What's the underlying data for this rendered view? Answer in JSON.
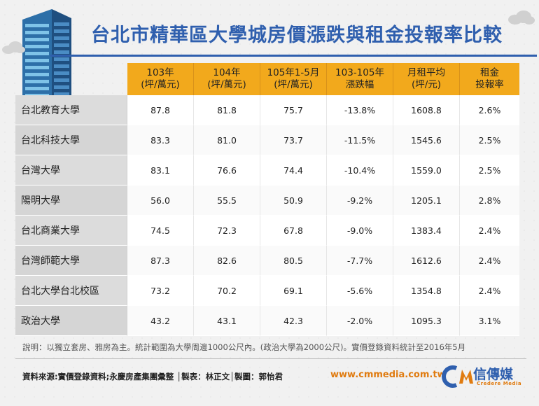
{
  "title": "台北市精華區大學城房價漲跌與租金投報率比較",
  "chart_data": {
    "type": "table",
    "columns": [
      {
        "line1": "103年",
        "line2": "(坪/萬元)"
      },
      {
        "line1": "104年",
        "line2": "(坪/萬元)"
      },
      {
        "line1": "105年1-5月",
        "line2": "(坪/萬元)"
      },
      {
        "line1": "103-105年",
        "line2": "漲跌幅"
      },
      {
        "line1": "月租平均",
        "line2": "(坪/元)"
      },
      {
        "line1": "租金",
        "line2": "投報率"
      }
    ],
    "rows": [
      {
        "name": "台北教育大學",
        "values": [
          "87.8",
          "81.8",
          "75.7",
          "-13.8%",
          "1608.8",
          "2.6%"
        ]
      },
      {
        "name": "台北科技大學",
        "values": [
          "83.3",
          "81.0",
          "73.7",
          "-11.5%",
          "1545.6",
          "2.5%"
        ]
      },
      {
        "name": "台灣大學",
        "values": [
          "83.1",
          "76.6",
          "74.4",
          "-10.4%",
          "1559.0",
          "2.5%"
        ]
      },
      {
        "name": "陽明大學",
        "values": [
          "56.0",
          "55.5",
          "50.9",
          "-9.2%",
          "1205.1",
          "2.8%"
        ]
      },
      {
        "name": "台北商業大學",
        "values": [
          "74.5",
          "72.3",
          "67.8",
          "-9.0%",
          "1383.4",
          "2.4%"
        ]
      },
      {
        "name": "台灣師範大學",
        "values": [
          "87.3",
          "82.6",
          "80.5",
          "-7.7%",
          "1612.6",
          "2.4%"
        ]
      },
      {
        "name": "台北大學台北校區",
        "values": [
          "73.2",
          "70.2",
          "69.1",
          "-5.6%",
          "1354.8",
          "2.4%"
        ]
      },
      {
        "name": "政治大學",
        "values": [
          "43.2",
          "43.1",
          "42.3",
          "-2.0%",
          "1095.3",
          "3.1%"
        ]
      }
    ]
  },
  "note": "說明：以獨立套房、雅房為主。統計範圍為大學周邊1000公尺內。(政治大學為2000公尺)。實價登錄資料統計至2016年5月",
  "source": "資料來源:實價登錄資料;永慶房產集團彙整 │製表：林正文│製圖：郭怡君",
  "website": "www.cmmedia.com.tw",
  "logo": {
    "text": "信傳媒",
    "sub": "Credere Media"
  },
  "colors": {
    "header": "#f2a91c",
    "title": "#2f5fae",
    "accent": "#e07b10"
  }
}
